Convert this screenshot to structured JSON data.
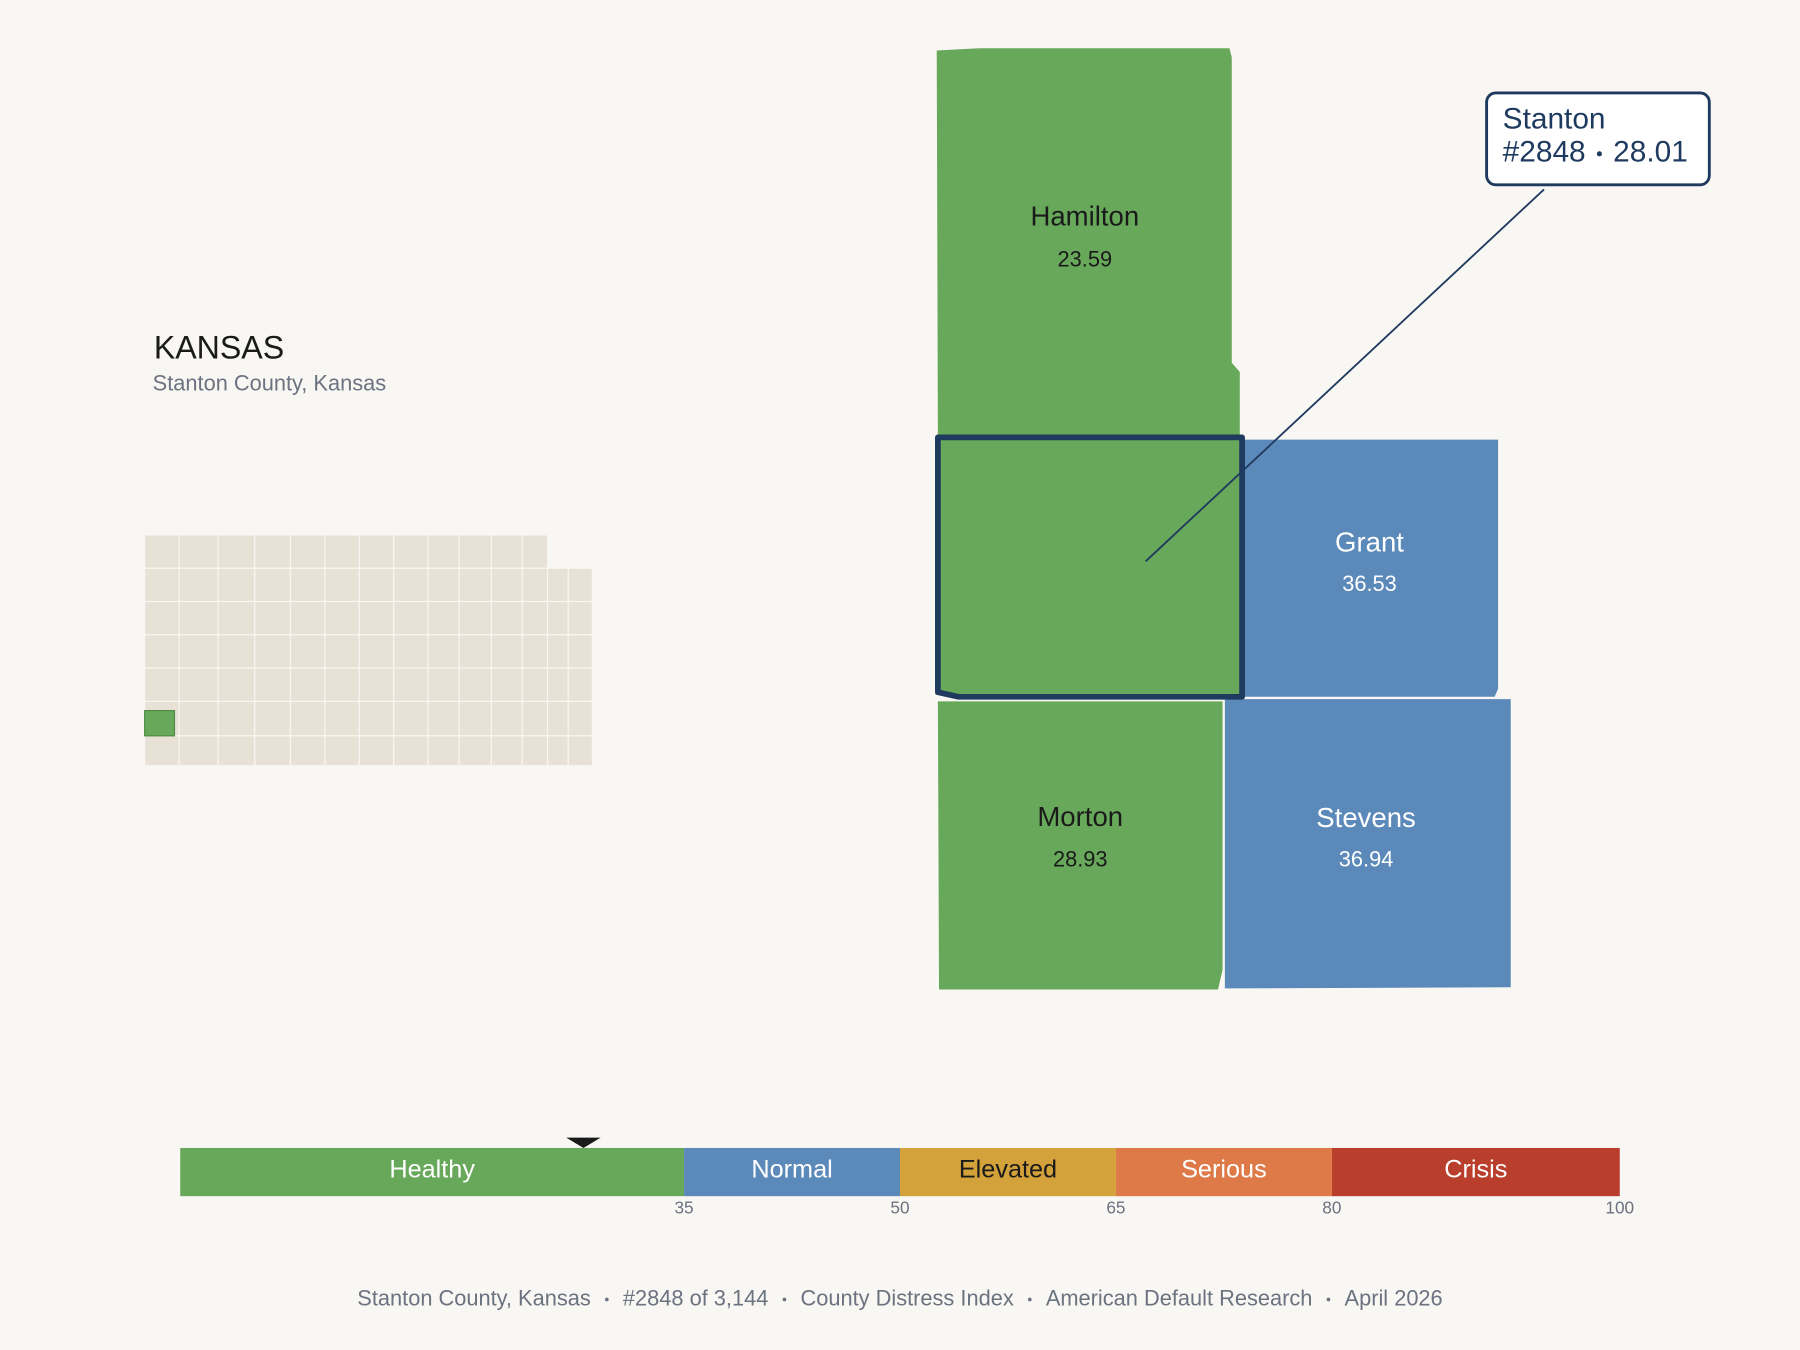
{
  "header": {
    "title": "KANSAS",
    "subtitle": "Stanton County, Kansas"
  },
  "counties": [
    {
      "name": "Hamilton",
      "value": 23.59
    },
    {
      "name": "Stanton",
      "rank": "#2848",
      "value": 28.01,
      "selected": true
    },
    {
      "name": "Grant",
      "value": 36.53
    },
    {
      "name": "Morton",
      "value": 28.93
    },
    {
      "name": "Stevens",
      "value": 36.94
    }
  ],
  "scale": {
    "range": [
      0,
      100
    ],
    "ticks": [
      35,
      50,
      65,
      80,
      100
    ],
    "segments": [
      {
        "label": "Healthy",
        "color": "#67a85a"
      },
      {
        "label": "Normal",
        "color": "#5b89b9"
      },
      {
        "label": "Elevated",
        "color": "#d4a23a"
      },
      {
        "label": "Serious",
        "color": "#de7a48"
      },
      {
        "label": "Crisis",
        "color": "#b93e2c"
      }
    ]
  },
  "footer": [
    "Stanton County, Kansas",
    "#2848 of 3,144",
    "County Distress Index",
    "American Default Research",
    "April 2026"
  ]
}
